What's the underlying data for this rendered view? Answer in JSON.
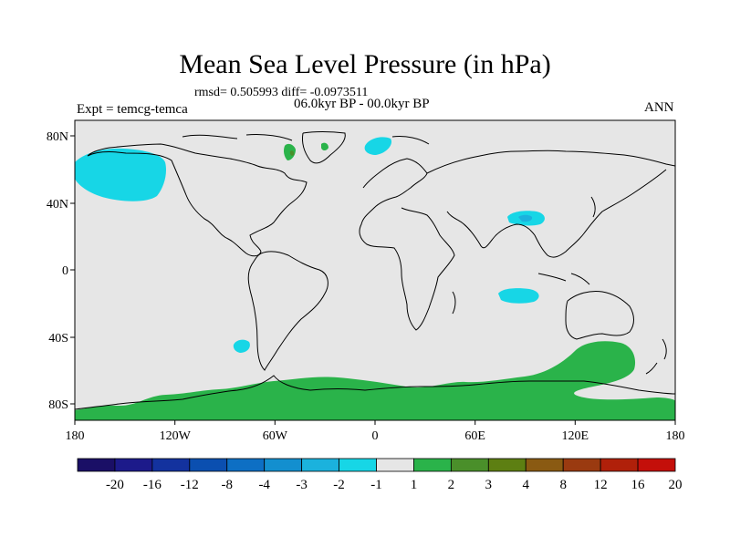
{
  "figure": {
    "title": "Mean Sea Level Pressure (in hPa)",
    "stats": "rmsd= 0.505993 diff= -0.0973511",
    "period": "06.0kyr BP - 00.0kyr BP",
    "experiment": "Expt = temcg-temca",
    "season": "ANN"
  },
  "axes": {
    "lat_labels": [
      "80N",
      "40N",
      "0",
      "40S",
      "80S"
    ],
    "lon_labels": [
      "180",
      "120W",
      "60W",
      "0",
      "60E",
      "120E",
      "180"
    ]
  },
  "colorbar": {
    "labels": [
      "-20",
      "-16",
      "-12",
      "-8",
      "-4",
      "-3",
      "-2",
      "-1",
      "1",
      "2",
      "3",
      "4",
      "8",
      "12",
      "16",
      "20"
    ],
    "colors": [
      "#1a0f66",
      "#1c1a8a",
      "#13329e",
      "#0b4fb0",
      "#0d6fc4",
      "#138fcf",
      "#1bb2dd",
      "#17d6e6",
      "#e6e6e6",
      "#2ab34a",
      "#4a8f2a",
      "#5d7f12",
      "#8a5a12",
      "#9a3a10",
      "#b0200a",
      "#c40f0a"
    ]
  },
  "colors": {
    "background": "#e6e6e6",
    "negative_anomaly": "#17d6e6",
    "strong_negative": "#1bb2dd",
    "positive_anomaly": "#2ab34a",
    "strong_positive": "#4a8f2a",
    "coast": "#000000"
  }
}
